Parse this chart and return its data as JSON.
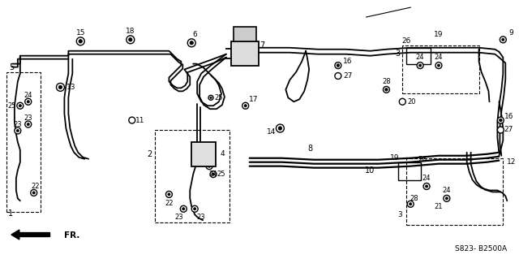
{
  "bg_color": "#ffffff",
  "line_color": "#000000",
  "diagram_code": "S823- B2500A",
  "fr_label": "FR.",
  "figsize": [
    6.4,
    3.19
  ],
  "dpi": 100,
  "components": {
    "master_cyl": [
      290,
      62
    ],
    "prop_valve": [
      248,
      193
    ]
  }
}
